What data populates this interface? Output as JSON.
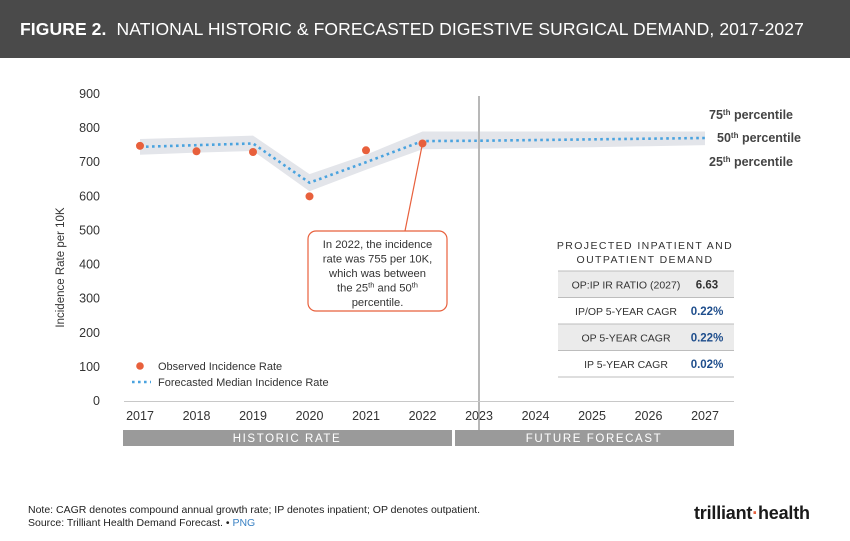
{
  "header": {
    "figure_label": "FIGURE 2.",
    "title": "NATIONAL HISTORIC & FORECASTED DIGESTIVE SURGICAL DEMAND, 2017-2027"
  },
  "colors": {
    "header_bg": "#4a4a4a",
    "observed": "#e8603c",
    "forecast": "#4aa3df",
    "band": "#e3e5ea",
    "axis_grey": "#9a9a9a",
    "metric_value": "#1f4e8c"
  },
  "chart_data": {
    "type": "line",
    "title": "NATIONAL HISTORIC & FORECASTED DIGESTIVE SURGICAL DEMAND, 2017-2027",
    "xlabel": "",
    "ylabel": "Incidence Rate per 10K",
    "ylim": [
      0,
      900
    ],
    "yticks": [
      0,
      100,
      200,
      300,
      400,
      500,
      600,
      700,
      800,
      900
    ],
    "categories": [
      "2017",
      "2018",
      "2019",
      "2020",
      "2021",
      "2022",
      "2023",
      "2024",
      "2025",
      "2026",
      "2027"
    ],
    "series": [
      {
        "name": "Observed Incidence Rate",
        "style": "points",
        "x": [
          "2017",
          "2018",
          "2019",
          "2020",
          "2021",
          "2022"
        ],
        "values": [
          748,
          732,
          730,
          600,
          735,
          755
        ]
      },
      {
        "name": "Forecasted Median Incidence Rate",
        "style": "dotted-line",
        "x": [
          "2017",
          "2018",
          "2019",
          "2020",
          "2021",
          "2022",
          "2023",
          "2024",
          "2025",
          "2026",
          "2027"
        ],
        "values": [
          745,
          750,
          755,
          640,
          700,
          762,
          763,
          765,
          767,
          769,
          771
        ]
      }
    ],
    "band": {
      "x": [
        "2017",
        "2018",
        "2019",
        "2020",
        "2021",
        "2022",
        "2023",
        "2024",
        "2025",
        "2026",
        "2027"
      ],
      "upper": [
        768,
        773,
        778,
        665,
        722,
        790,
        790,
        790,
        790,
        790,
        790
      ],
      "lower": [
        722,
        728,
        733,
        615,
        678,
        738,
        740,
        742,
        744,
        747,
        750
      ]
    },
    "divider_x": "2023",
    "percentile_labels": [
      {
        "base": "75",
        "sup": "th",
        "rest": " percentile"
      },
      {
        "base": "50",
        "sup": "th",
        "rest": " percentile"
      },
      {
        "base": "25",
        "sup": "th",
        "rest": " percentile"
      }
    ],
    "annotation": {
      "lines": [
        [
          {
            "t": "In 2022, the incidence"
          }
        ],
        [
          {
            "t": "rate was 755 per 10K,"
          }
        ],
        [
          {
            "t": "which was between"
          }
        ],
        [
          {
            "t": "the 25"
          },
          {
            "t": "th",
            "sup": true
          },
          {
            "t": " and 50"
          },
          {
            "t": "th",
            "sup": true
          }
        ],
        [
          {
            "t": "percentile."
          }
        ]
      ],
      "points_to": {
        "x": "2022",
        "y": 755
      }
    },
    "period_labels": {
      "historic": "HISTORIC RATE",
      "future": "FUTURE FORECAST"
    },
    "legend": [
      {
        "label": "Observed Incidence Rate",
        "kind": "dot"
      },
      {
        "label": "Forecasted Median Incidence Rate",
        "kind": "dotted"
      }
    ],
    "table": {
      "title_lines": [
        "PROJECTED INPATIENT AND",
        "OUTPATIENT DEMAND"
      ],
      "rows": [
        {
          "label": "OP:IP IR RATIO (2027)",
          "value": "6.63"
        },
        {
          "label": "IP/OP 5-YEAR CAGR",
          "value": "0.22%"
        },
        {
          "label": "OP 5-YEAR CAGR",
          "value": "0.22%"
        },
        {
          "label": "IP 5-YEAR CAGR",
          "value": "0.02%"
        }
      ]
    }
  },
  "footer": {
    "note": "Note: CAGR denotes compound annual growth rate; IP denotes inpatient; OP denotes outpatient.",
    "source": "Source: Trilliant Health Demand Forecast.",
    "separator": "•",
    "png_link": "PNG",
    "logo_part1": "trilliant",
    "logo_part2": "health"
  }
}
